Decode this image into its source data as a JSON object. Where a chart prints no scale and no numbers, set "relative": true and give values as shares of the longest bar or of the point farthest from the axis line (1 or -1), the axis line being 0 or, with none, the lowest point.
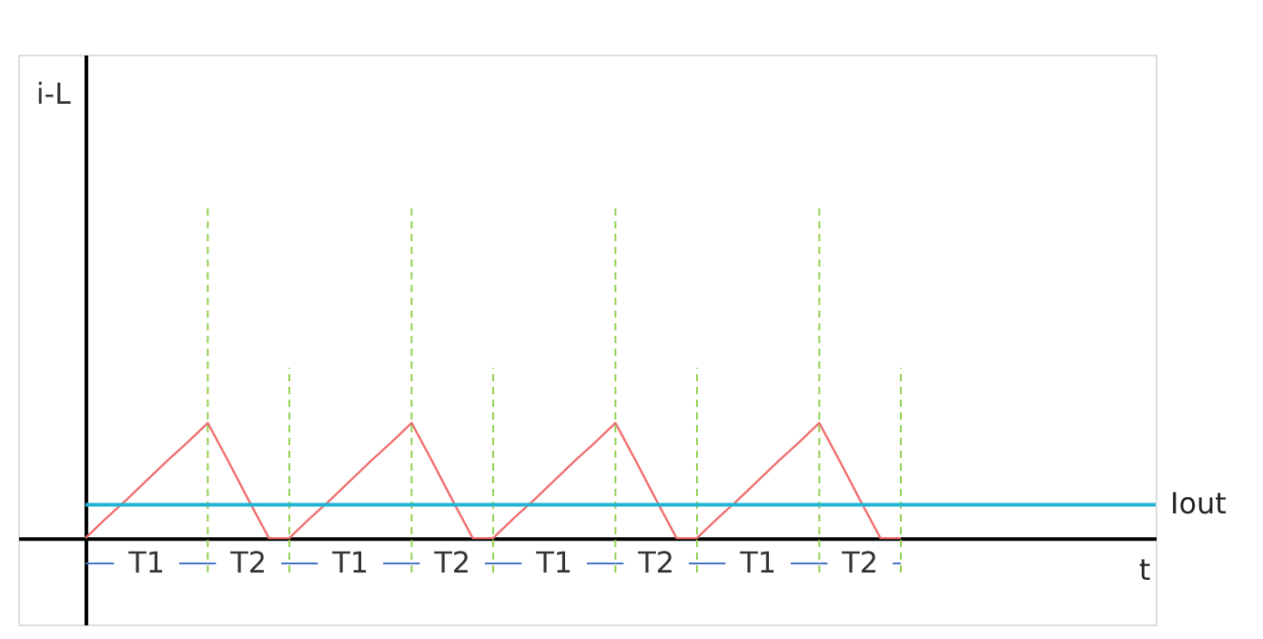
{
  "chart_data": {
    "type": "line",
    "relative": true,
    "grid": "x",
    "marker": "none",
    "line_style": "solid",
    "categories": [
      null,
      null,
      null,
      null,
      null,
      null,
      null,
      null,
      null,
      null,
      null,
      null,
      null,
      null,
      null,
      null,
      null,
      null,
      null,
      null,
      null,
      null,
      null,
      null,
      null,
      null,
      null,
      null,
      null,
      null,
      null,
      null,
      null,
      null,
      null,
      null,
      null,
      null,
      null,
      null,
      null
    ],
    "series": [
      {
        "color": "#f07070",
        "values": [
          0,
          0.17,
          0.33,
          0.5,
          0.67,
          0.83,
          1,
          0.67,
          0.33,
          0,
          0,
          0.17,
          0.33,
          0.5,
          0.67,
          0.83,
          1,
          0.67,
          0.33,
          0,
          0,
          0.17,
          0.33,
          0.5,
          0.67,
          0.83,
          1,
          0.67,
          0.33,
          0,
          0,
          0.17,
          0.33,
          0.5,
          0.67,
          0.83,
          1,
          0.67,
          0.33,
          0,
          0
        ]
      }
    ],
    "ref_lines": [
      {
        "axis": "y",
        "value": 0.29,
        "label": "Iout",
        "color": "#1fb5d0",
        "line_style": "solid"
      }
    ],
    "annotations": [
      "i-L",
      "T1",
      "T2",
      "T1",
      "T2",
      "T1",
      "T2",
      "T1",
      "T2",
      "t"
    ]
  }
}
